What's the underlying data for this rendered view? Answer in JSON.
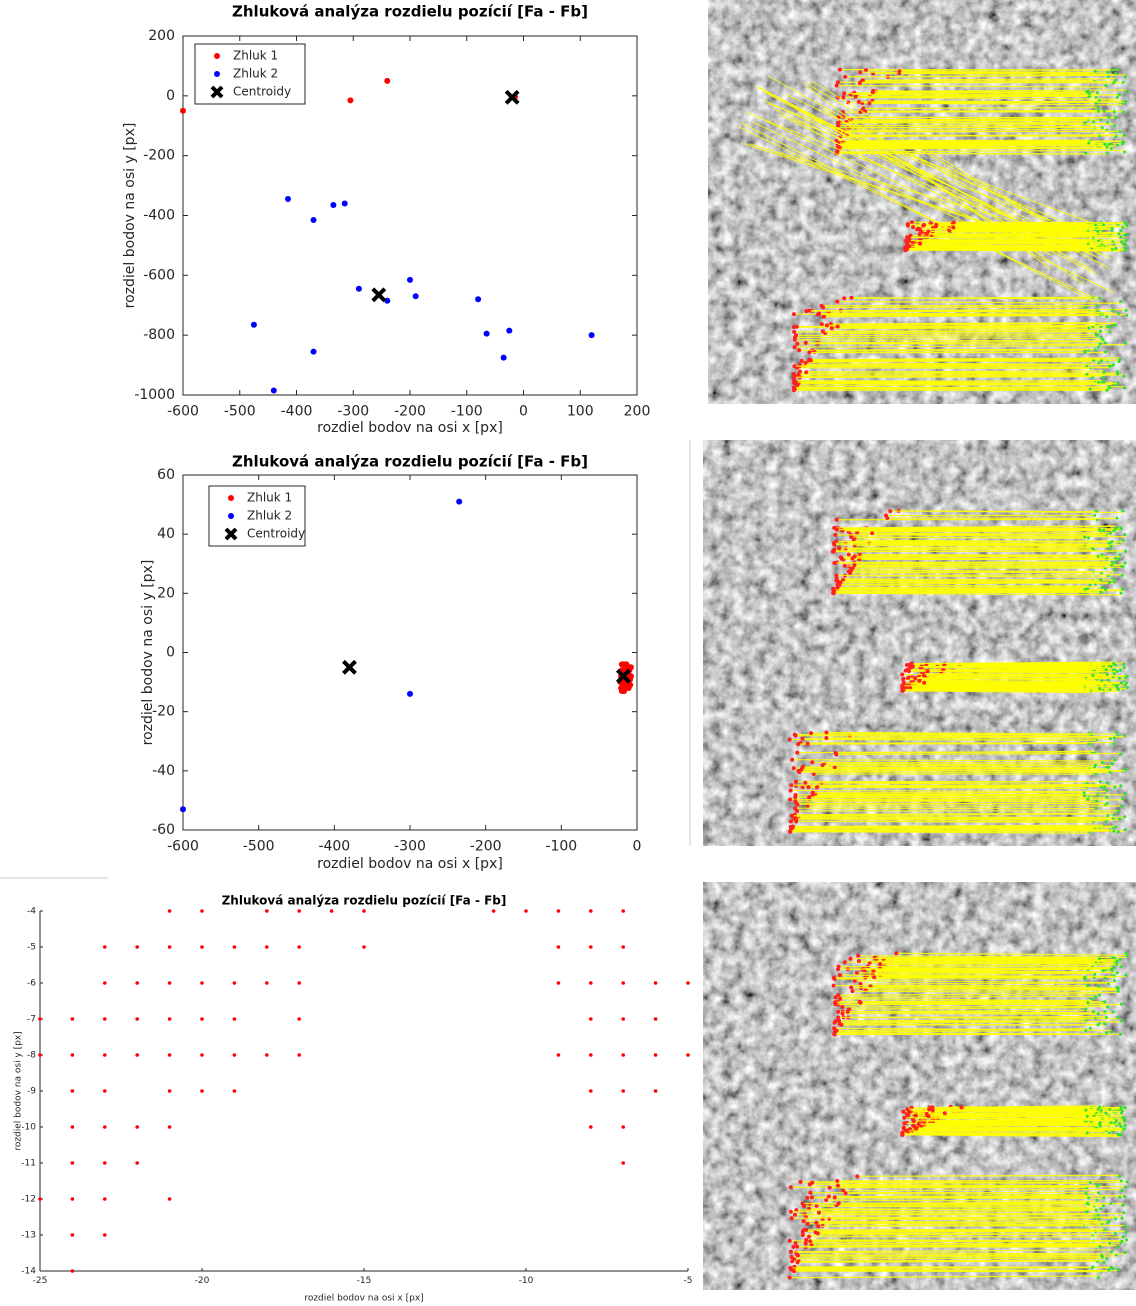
{
  "chart_data": [
    {
      "type": "scatter",
      "title": "Zhluková analýza rozdielu pozícií [Fa - Fb]",
      "xlabel": "rozdiel bodov na osi x [px]",
      "ylabel": "rozdiel bodov na osi y [px]",
      "xlim": [
        -600,
        200
      ],
      "ylim": [
        -1000,
        200
      ],
      "xticks": [
        -600,
        -500,
        -400,
        -300,
        -200,
        -100,
        0,
        100,
        200
      ],
      "yticks": [
        -1000,
        -800,
        -600,
        -400,
        -200,
        0,
        200
      ],
      "box": true,
      "legend": "upper left",
      "series": [
        {
          "name": "Zhluk 1",
          "color": "#ff0000",
          "marker": "dot",
          "x": [
            -600,
            -305,
            -240,
            -20,
            -15
          ],
          "y": [
            -50,
            -15,
            50,
            -5,
            -3
          ]
        },
        {
          "name": "Zhluk 2",
          "color": "#0000ff",
          "marker": "dot",
          "x": [
            -415,
            -335,
            -315,
            -370,
            -200,
            -290,
            -190,
            -80,
            -240,
            -475,
            -65,
            -25,
            -370,
            -35,
            120,
            -440
          ],
          "y": [
            -345,
            -365,
            -360,
            -415,
            -615,
            -645,
            -670,
            -680,
            -685,
            -765,
            -795,
            -785,
            -855,
            -875,
            -800,
            -985
          ]
        },
        {
          "name": "Centroidy",
          "color": "#000000",
          "marker": "x",
          "x": [
            -20,
            -255
          ],
          "y": [
            -5,
            -665
          ]
        }
      ]
    },
    {
      "type": "scatter",
      "title": "Zhluková analýza rozdielu pozícií [Fa - Fb]",
      "xlabel": "rozdiel bodov na osi x [px]",
      "ylabel": "rozdiel bodov na osi y [px]",
      "xlim": [
        -600,
        0
      ],
      "ylim": [
        -60,
        60
      ],
      "xticks": [
        -600,
        -500,
        -400,
        -300,
        -200,
        -100,
        0
      ],
      "yticks": [
        -60,
        -40,
        -20,
        0,
        20,
        40,
        60
      ],
      "box": true,
      "legend": "upper left",
      "series": [
        {
          "name": "Zhluk 1",
          "color": "#ff0000",
          "marker": "dot",
          "x": [
            -20,
            -18,
            -16,
            -14,
            -12,
            -10,
            -8,
            -20,
            -18,
            -16,
            -14,
            -12,
            -10,
            -8,
            -21,
            -19,
            -17,
            -15,
            -13,
            -11,
            -9,
            -22,
            -20,
            -18,
            -16,
            -12,
            -9,
            -21,
            -19,
            -15,
            -11,
            -20,
            -17
          ],
          "y": [
            -4,
            -4,
            -4,
            -4,
            -5,
            -5,
            -5,
            -6,
            -6,
            -7,
            -6,
            -7,
            -6,
            -8,
            -8,
            -8,
            -9,
            -9,
            -8,
            -10,
            -9,
            -10,
            -10,
            -11,
            -11,
            -10,
            -11,
            -12,
            -12,
            -12,
            -12,
            -13,
            -13
          ]
        },
        {
          "name": "Zhluk 2",
          "color": "#0000ff",
          "marker": "dot",
          "x": [
            -235,
            -300,
            -600
          ],
          "y": [
            51,
            -14,
            -53
          ]
        },
        {
          "name": "Centroidy",
          "color": "#000000",
          "marker": "x",
          "x": [
            -380,
            -18
          ],
          "y": [
            -5,
            -8
          ]
        }
      ]
    },
    {
      "type": "scatter",
      "title": "Zhluková analýza rozdielu pozícií [Fa - Fb]",
      "xlabel": "rozdiel bodov na osi x [px]",
      "ylabel": "rozdiel bodov na osi y [px]",
      "xlim": [
        -25,
        -5
      ],
      "ylim": [
        -14,
        -4
      ],
      "xticks": [
        -25,
        -20,
        -15,
        -10,
        -5
      ],
      "yticks": [
        -14,
        -13,
        -12,
        -11,
        -10,
        -9,
        -8,
        -7,
        -6,
        -5,
        -4
      ],
      "box": false,
      "series": [
        {
          "color": "#ff0000",
          "marker": "dot",
          "x": [
            -21,
            -20,
            -18,
            -17,
            -16,
            -15,
            -11,
            -10,
            -9,
            -8,
            -7,
            -23,
            -22,
            -21,
            -20,
            -19,
            -18,
            -17,
            -15,
            -9,
            -8,
            -7,
            -23,
            -22,
            -21,
            -20,
            -19,
            -18,
            -17,
            -9,
            -8,
            -7,
            -6,
            -5,
            -25,
            -24,
            -23,
            -22,
            -21,
            -20,
            -19,
            -17,
            -8,
            -7,
            -6,
            -25,
            -24,
            -23,
            -22,
            -21,
            -20,
            -19,
            -18,
            -17,
            -9,
            -8,
            -7,
            -6,
            -5,
            -24,
            -23,
            -21,
            -20,
            -19,
            -8,
            -7,
            -6,
            -24,
            -23,
            -22,
            -21,
            -8,
            -7,
            -24,
            -23,
            -22,
            -7,
            -25,
            -24,
            -23,
            -21,
            -24,
            -23,
            -24
          ],
          "y": [
            -4,
            -4,
            -4,
            -4,
            -4,
            -4,
            -4,
            -4,
            -4,
            -4,
            -4,
            -5,
            -5,
            -5,
            -5,
            -5,
            -5,
            -5,
            -5,
            -5,
            -5,
            -5,
            -6,
            -6,
            -6,
            -6,
            -6,
            -6,
            -6,
            -6,
            -6,
            -6,
            -6,
            -6,
            -7,
            -7,
            -7,
            -7,
            -7,
            -7,
            -7,
            -7,
            -7,
            -7,
            -7,
            -8,
            -8,
            -8,
            -8,
            -8,
            -8,
            -8,
            -8,
            -8,
            -8,
            -8,
            -8,
            -8,
            -8,
            -9,
            -9,
            -9,
            -9,
            -9,
            -9,
            -9,
            -9,
            -10,
            -10,
            -10,
            -10,
            -10,
            -10,
            -11,
            -11,
            -11,
            -11,
            -12,
            -12,
            -12,
            -12,
            -13,
            -13,
            -14
          ]
        }
      ]
    }
  ]
}
